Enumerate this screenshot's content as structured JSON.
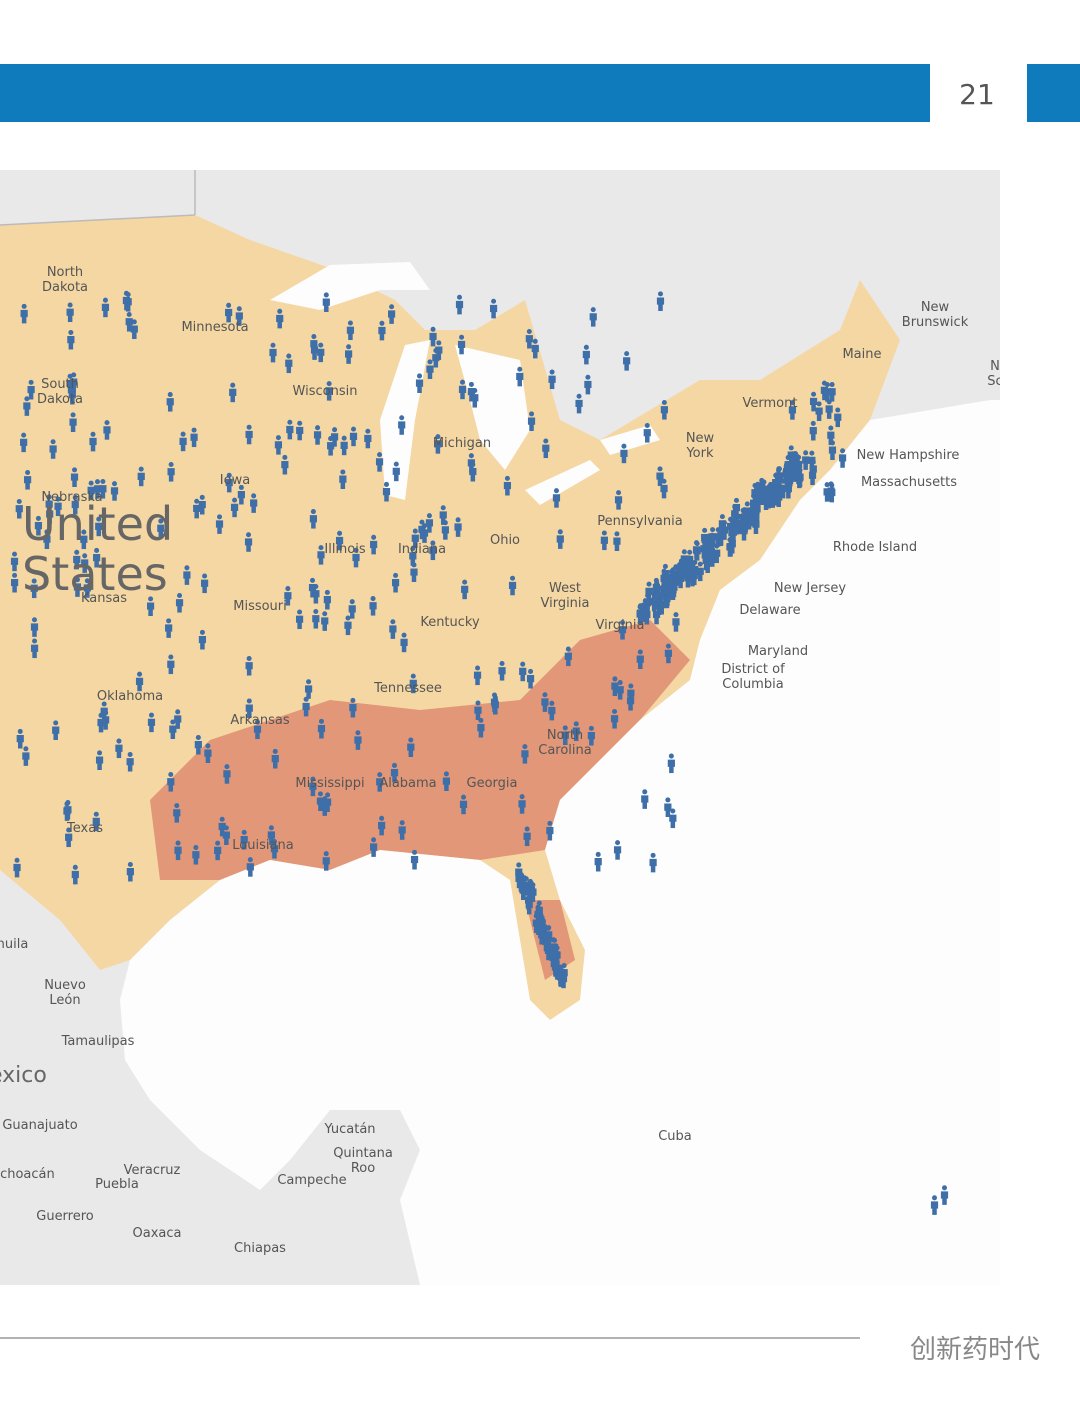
{
  "header": {
    "page_number": "21"
  },
  "map": {
    "labels": [
      [
        "North",
        "Dakota"
      ],
      [
        "Minnesota"
      ],
      [
        "South",
        "Dakota"
      ],
      [
        "Wisconsin"
      ],
      [
        "Nebraska"
      ],
      [
        "Iowa"
      ],
      [
        "Illinois"
      ],
      [
        "Indiana"
      ],
      [
        "Michigan"
      ],
      [
        "Ohio"
      ],
      [
        "Pennsylvania"
      ],
      [
        "New",
        "York"
      ],
      [
        "Vermont"
      ],
      [
        "Maine"
      ],
      [
        "New",
        "Brunswick"
      ],
      [
        "N",
        "Sc"
      ],
      [
        "New Hampshire"
      ],
      [
        "Massachusetts"
      ],
      [
        "Rhode Island"
      ],
      [
        "New Jersey"
      ],
      [
        "Delaware"
      ],
      [
        "Maryland"
      ],
      [
        "District of",
        "Columbia"
      ],
      [
        "Kansas"
      ],
      [
        "Missouri"
      ],
      [
        "West",
        "Virginia"
      ],
      [
        "Virginia"
      ],
      [
        "Kentucky"
      ],
      [
        "Oklahoma"
      ],
      [
        "Tennessee"
      ],
      [
        "Arkansas"
      ],
      [
        "North",
        "Carolina"
      ],
      [
        "Mississippi"
      ],
      [
        "Alabama"
      ],
      [
        "Georgia"
      ],
      [
        "Texas"
      ],
      [
        "Louisiana"
      ],
      [
        "Coahuila"
      ],
      [
        "Nuevo",
        "León"
      ],
      [
        "Tamaulipas"
      ],
      [
        "Guanajuato"
      ],
      [
        "Michoacán"
      ],
      [
        "Veracruz"
      ],
      [
        "Puebla"
      ],
      [
        "Guerrero"
      ],
      [
        "Oaxaca"
      ],
      [
        "Chiapas"
      ],
      [
        "Yucatán"
      ],
      [
        "Quintana",
        "Roo"
      ],
      [
        "Campeche"
      ],
      [
        "Cuba"
      ]
    ],
    "countries": [
      "United",
      "States",
      "Mexico"
    ]
  },
  "watermark": "创新药时代"
}
